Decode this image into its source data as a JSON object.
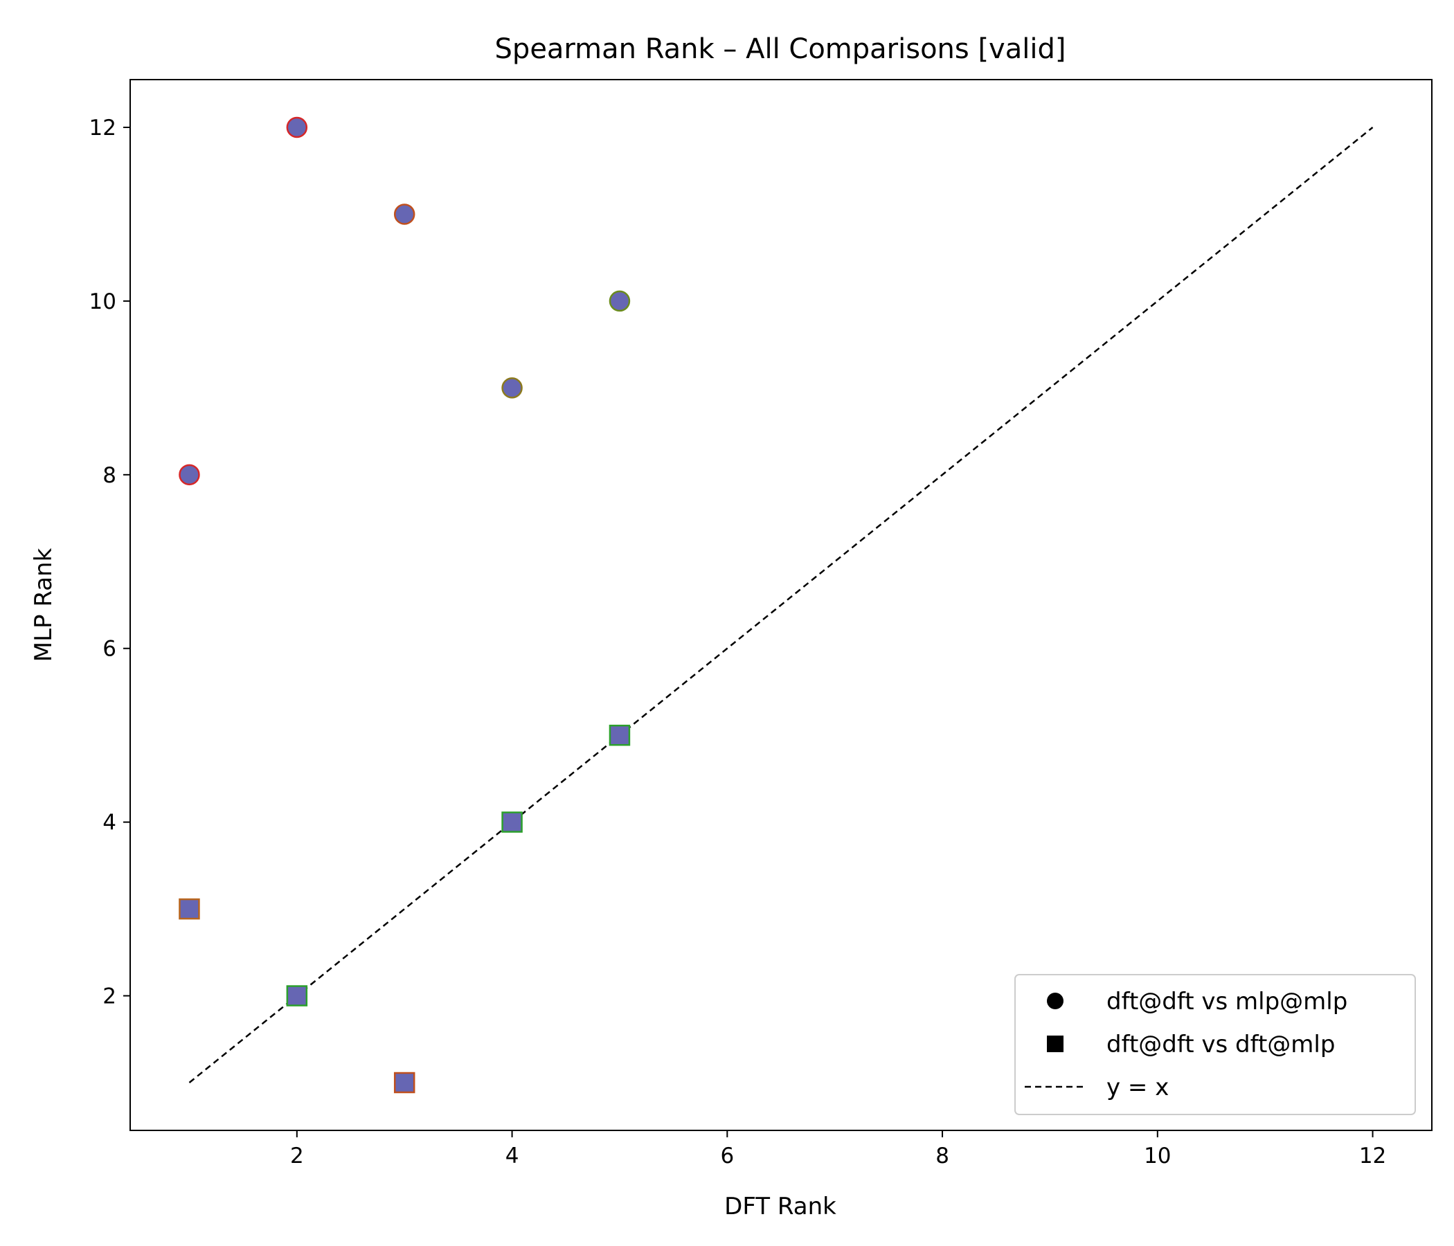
{
  "chart_data": {
    "type": "scatter",
    "title": "Spearman Rank – All Comparisons [valid]",
    "xlabel": "DFT Rank",
    "ylabel": "MLP Rank",
    "xlim": [
      0.45,
      12.55
    ],
    "ylim": [
      0.45,
      12.55
    ],
    "xticks": [
      2,
      4,
      6,
      8,
      10,
      12
    ],
    "yticks": [
      2,
      4,
      6,
      8,
      10,
      12
    ],
    "grid": false,
    "legend_position": "lower-right",
    "marker_fill": "#6666b3",
    "series": [
      {
        "name": "dft@dft vs mlp@mlp",
        "marker": "circle",
        "points": [
          {
            "x": 1,
            "y": 8,
            "edge": "#d62728"
          },
          {
            "x": 2,
            "y": 12,
            "edge": "#d62728"
          },
          {
            "x": 3,
            "y": 11,
            "edge": "#c0501e"
          },
          {
            "x": 4,
            "y": 9,
            "edge": "#8c7a1e"
          },
          {
            "x": 5,
            "y": 10,
            "edge": "#6b8c1e"
          }
        ]
      },
      {
        "name": "dft@dft vs dft@mlp",
        "marker": "square",
        "points": [
          {
            "x": 1,
            "y": 3,
            "edge": "#b8651e"
          },
          {
            "x": 2,
            "y": 2,
            "edge": "#2ca02c"
          },
          {
            "x": 3,
            "y": 1,
            "edge": "#c0501e"
          },
          {
            "x": 4,
            "y": 4,
            "edge": "#2ca02c"
          },
          {
            "x": 5,
            "y": 5,
            "edge": "#2ca02c"
          }
        ]
      }
    ],
    "reference_line": {
      "name": "y = x",
      "style": "dashed",
      "x": [
        1,
        12
      ],
      "y": [
        1,
        12
      ]
    }
  }
}
